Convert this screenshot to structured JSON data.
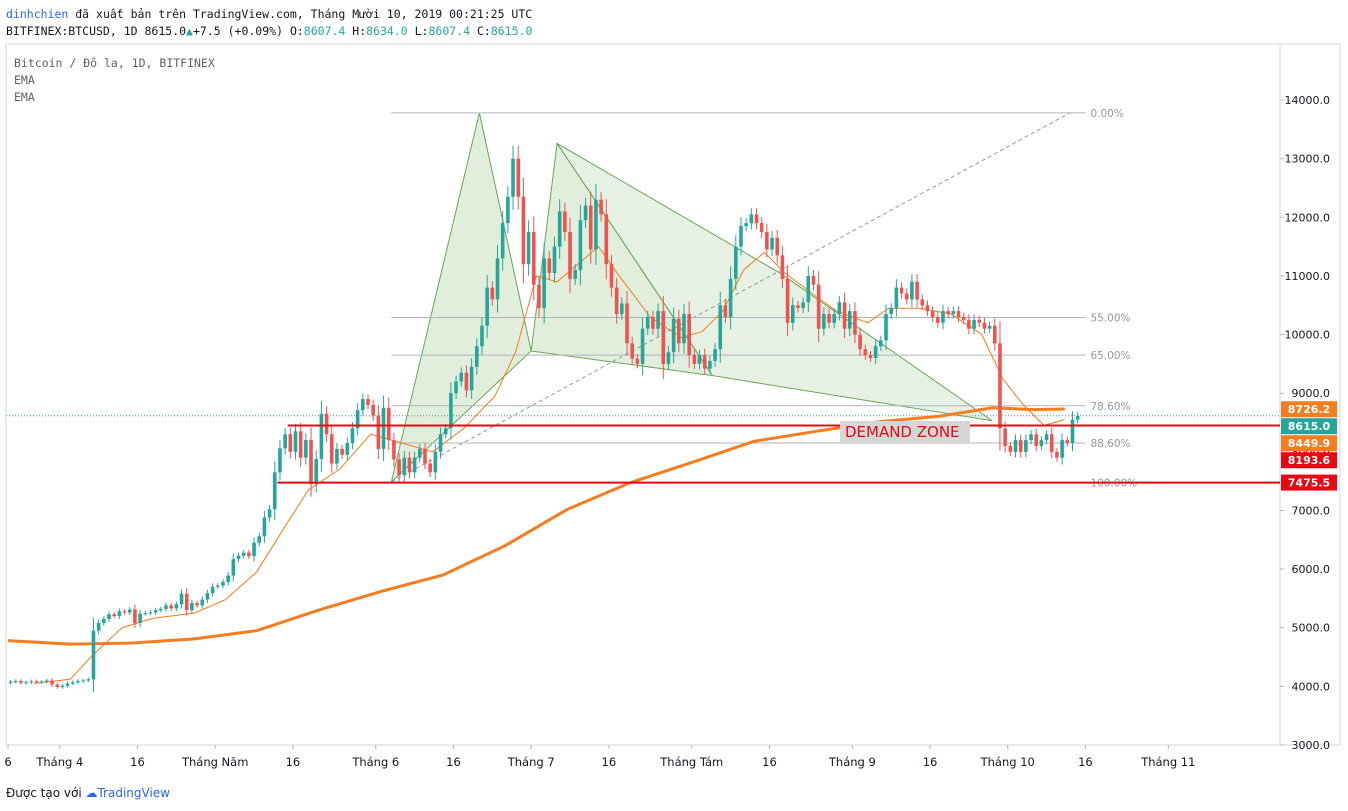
{
  "header": {
    "author": "dinhchien",
    "published": "đã xuất bản trên TradingView.com, Tháng Mười 10, 2019 00:21:25 UTC",
    "symbol": "BITFINEX:BTCUSD, 1D",
    "last": "8615.0",
    "change": "+7.5 (+0.09%)",
    "ohlc_o_label": "O:",
    "ohlc_o": "8607.4",
    "ohlc_h_label": "H:",
    "ohlc_h": "8634.0",
    "ohlc_l_label": "L:",
    "ohlc_l": "8607.4",
    "ohlc_c_label": "C:",
    "ohlc_c": "8615.0"
  },
  "legend": {
    "title": "Bitcoin / Đô la, 1D, BITFINEX",
    "ema1": "EMA",
    "ema2": "EMA"
  },
  "footer": {
    "made_with": "Được tạo với",
    "brand": "TradingView"
  },
  "colors": {
    "up": "#26a69a",
    "down": "#ef5350",
    "ema_long": "#f57c1f",
    "ema_short": "#f57c1f",
    "zone_line": "#e50914",
    "pattern_fill": "#c8e0c0",
    "pattern_line": "#6aa55a",
    "fib_line": "#b2b5be",
    "price_line": "#26a69a"
  },
  "chart_data": {
    "type": "candlestick",
    "title": "Bitcoin / Đô la, 1D, BITFINEX",
    "ylim": [
      3000,
      14800
    ],
    "y_ticks": [
      "3000.0",
      "4000.0",
      "5000.0",
      "6000.0",
      "7000.0",
      "8000.0",
      "9000.0",
      "10000.0",
      "11000.0",
      "12000.0",
      "13000.0",
      "14000.0"
    ],
    "x_ticks": [
      {
        "label": "6",
        "day": 0
      },
      {
        "label": "Tháng 4",
        "day": 10
      },
      {
        "label": "16",
        "day": 25
      },
      {
        "label": "Tháng Năm",
        "day": 40
      },
      {
        "label": "16",
        "day": 55
      },
      {
        "label": "Tháng 6",
        "day": 71
      },
      {
        "label": "16",
        "day": 86
      },
      {
        "label": "Tháng 7",
        "day": 101
      },
      {
        "label": "16",
        "day": 116
      },
      {
        "label": "Tháng Tám",
        "day": 132
      },
      {
        "label": "16",
        "day": 147
      },
      {
        "label": "Tháng 9",
        "day": 163
      },
      {
        "label": "16",
        "day": 178
      },
      {
        "label": "Tháng 10",
        "day": 193
      },
      {
        "label": "16",
        "day": 208
      },
      {
        "label": "Tháng 11",
        "day": 224
      }
    ],
    "x_range_days": [
      0,
      232
    ],
    "closes": [
      4080,
      4090,
      4060,
      4070,
      4085,
      4075,
      4080,
      4100,
      4030,
      3990,
      4010,
      4050,
      4070,
      4090,
      4100,
      4120,
      4950,
      5080,
      5150,
      5230,
      5200,
      5280,
      5260,
      5310,
      5080,
      5240,
      5250,
      5260,
      5300,
      5320,
      5380,
      5330,
      5400,
      5580,
      5300,
      5420,
      5380,
      5480,
      5590,
      5700,
      5720,
      5780,
      5890,
      6170,
      6230,
      6280,
      6220,
      6450,
      6560,
      6880,
      7020,
      7650,
      8060,
      8300,
      8000,
      8350,
      7900,
      8200,
      7450,
      7880,
      8650,
      8300,
      7800,
      8050,
      7950,
      8150,
      8400,
      8710,
      8900,
      8800,
      8620,
      8050,
      8750,
      8200,
      7870,
      7600,
      7900,
      7650,
      7900,
      8050,
      7800,
      7650,
      8000,
      8300,
      8400,
      9000,
      9200,
      9350,
      9050,
      9450,
      9800,
      10150,
      10800,
      10600,
      11300,
      11900,
      12350,
      13000,
      12350,
      11200,
      11750,
      10850,
      10450,
      11300,
      11050,
      11500,
      12100,
      11750,
      10950,
      11100,
      11950,
      12200,
      11450,
      12300,
      12050,
      11200,
      10800,
      10350,
      10530,
      9850,
      9590,
      9500,
      10100,
      10300,
      10100,
      10400,
      9500,
      9700,
      10270,
      9850,
      10350,
      9650,
      9500,
      9650,
      9420,
      9550,
      9750,
      10500,
      10300,
      10950,
      11500,
      11850,
      11900,
      12050,
      11900,
      11750,
      11450,
      11650,
      11350,
      10950,
      10200,
      10500,
      10450,
      10550,
      11000,
      10850,
      10100,
      10350,
      10200,
      10350,
      10550,
      10100,
      10400,
      10000,
      9750,
      9650,
      9600,
      9800,
      9900,
      10350,
      10450,
      10800,
      10700,
      10600,
      10900,
      10600,
      10500,
      10400,
      10300,
      10200,
      10400,
      10350,
      10400,
      10300,
      10250,
      10100,
      10250,
      10200,
      10100,
      10150,
      9850,
      8400,
      8100,
      8000,
      8200,
      8000,
      8200,
      8300,
      8100,
      8200,
      8300,
      8000,
      7900,
      8200,
      8150,
      8550,
      8615
    ],
    "ema_long_points": [
      [
        0,
        4780
      ],
      [
        12,
        4720
      ],
      [
        24,
        4740
      ],
      [
        36,
        4810
      ],
      [
        48,
        4950
      ],
      [
        60,
        5300
      ],
      [
        72,
        5620
      ],
      [
        84,
        5900
      ],
      [
        96,
        6400
      ],
      [
        108,
        7020
      ],
      [
        120,
        7470
      ],
      [
        132,
        7820
      ],
      [
        144,
        8180
      ],
      [
        156,
        8350
      ],
      [
        168,
        8510
      ],
      [
        180,
        8610
      ],
      [
        190,
        8750
      ],
      [
        198,
        8720
      ],
      [
        204,
        8730
      ]
    ],
    "ema_short_points": [
      [
        5,
        4050
      ],
      [
        12,
        4120
      ],
      [
        16,
        4500
      ],
      [
        22,
        5000
      ],
      [
        28,
        5160
      ],
      [
        36,
        5250
      ],
      [
        42,
        5480
      ],
      [
        48,
        5950
      ],
      [
        54,
        6800
      ],
      [
        58,
        7350
      ],
      [
        64,
        7700
      ],
      [
        70,
        8300
      ],
      [
        76,
        8150
      ],
      [
        82,
        8000
      ],
      [
        88,
        8400
      ],
      [
        94,
        8950
      ],
      [
        98,
        9700
      ],
      [
        102,
        11000
      ],
      [
        106,
        10900
      ],
      [
        110,
        11200
      ],
      [
        114,
        11500
      ],
      [
        118,
        11000
      ],
      [
        124,
        10300
      ],
      [
        130,
        9950
      ],
      [
        134,
        10050
      ],
      [
        138,
        10400
      ],
      [
        142,
        11100
      ],
      [
        146,
        11400
      ],
      [
        150,
        11050
      ],
      [
        156,
        10650
      ],
      [
        160,
        10400
      ],
      [
        166,
        10200
      ],
      [
        170,
        10450
      ],
      [
        176,
        10450
      ],
      [
        182,
        10350
      ],
      [
        188,
        10000
      ],
      [
        192,
        9250
      ],
      [
        196,
        8800
      ],
      [
        200,
        8450
      ],
      [
        204,
        8550
      ]
    ],
    "pattern_vertices": [
      [
        74,
        7485
      ],
      [
        91,
        13780
      ],
      [
        101,
        9720
      ],
      [
        106,
        13260
      ],
      [
        136,
        9300
      ],
      [
        190,
        8530
      ]
    ],
    "pattern_top_line_points": [
      [
        101,
        9720
      ],
      [
        106,
        13260
      ],
      [
        149,
        11050
      ]
    ],
    "diagonal_line": [
      [
        74,
        7485
      ],
      [
        205,
        13780
      ]
    ],
    "fib_levels": [
      {
        "label": "0.00%",
        "price": 13780
      },
      {
        "label": "55.00%",
        "price": 10290
      },
      {
        "label": "65.00%",
        "price": 9650
      },
      {
        "label": "78.60%",
        "price": 8785
      },
      {
        "label": "88.60%",
        "price": 8150
      },
      {
        "label": "100.00%",
        "price": 7475
      }
    ],
    "fib_x_range": [
      74,
      208
    ],
    "horizontal_lines": [
      {
        "price": 8449.9,
        "from_day": 54
      },
      {
        "price": 7475.5,
        "from_day": 52
      }
    ],
    "annotation": {
      "text": "DEMAND ZONE",
      "day": 161,
      "price": 8150
    },
    "price_labels": [
      {
        "text": "8726.2",
        "price": 8726.2,
        "color": "#f57c1f"
      },
      {
        "text": "8615.0",
        "price": 8615.0,
        "color": "#26a69a"
      },
      {
        "text": "8449.9",
        "price": 8449.9,
        "color": "#f57c1f"
      },
      {
        "text": "8193.6",
        "price": 8193.6,
        "color": "#e50914"
      },
      {
        "text": "7475.5",
        "price": 7475.5,
        "color": "#e50914"
      }
    ],
    "last_price": 8615.0
  }
}
